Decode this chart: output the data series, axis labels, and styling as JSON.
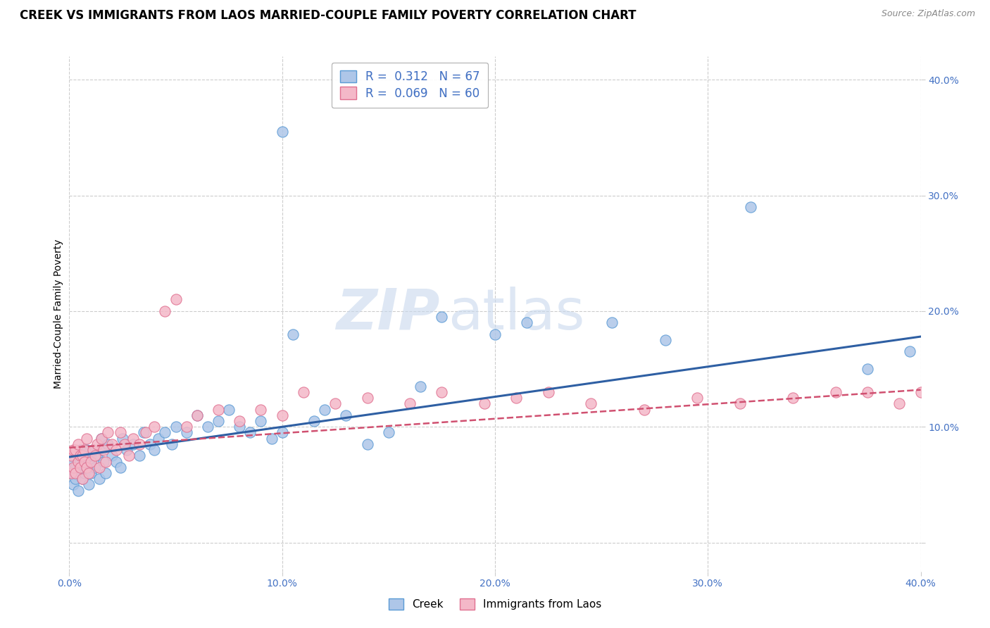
{
  "title": "CREEK VS IMMIGRANTS FROM LAOS MARRIED-COUPLE FAMILY POVERTY CORRELATION CHART",
  "source": "Source: ZipAtlas.com",
  "ylabel": "Married-Couple Family Poverty",
  "xlim": [
    -0.005,
    0.405
  ],
  "ylim": [
    -0.02,
    0.43
  ],
  "plot_xlim": [
    0.0,
    0.4
  ],
  "plot_ylim": [
    0.0,
    0.4
  ],
  "xticks": [
    0.0,
    0.1,
    0.2,
    0.3,
    0.4
  ],
  "xtick_labels": [
    "0.0%",
    "10.0%",
    "20.0%",
    "30.0%",
    "40.0%"
  ],
  "yticks_right": [
    0.0,
    0.1,
    0.2,
    0.3,
    0.4
  ],
  "ytick_labels_right": [
    "",
    "10.0%",
    "20.0%",
    "30.0%",
    "40.0%"
  ],
  "creek_color": "#aec6e8",
  "creek_edge_color": "#5b9bd5",
  "laos_color": "#f4b8c8",
  "laos_edge_color": "#e07090",
  "creek_line_color": "#2e5fa3",
  "laos_line_color": "#d05070",
  "creek_R": 0.312,
  "creek_N": 67,
  "laos_R": 0.069,
  "laos_N": 60,
  "legend_label_creek": "Creek",
  "legend_label_laos": "Immigrants from Laos",
  "watermark_zip": "ZIP",
  "watermark_atlas": "atlas",
  "background_color": "#ffffff",
  "grid_color": "#cccccc",
  "title_fontsize": 12,
  "axis_label_color": "#4472c4",
  "creek_scatter_x": [
    0.001,
    0.002,
    0.002,
    0.003,
    0.003,
    0.004,
    0.004,
    0.005,
    0.005,
    0.006,
    0.006,
    0.007,
    0.007,
    0.008,
    0.008,
    0.009,
    0.009,
    0.01,
    0.01,
    0.011,
    0.012,
    0.013,
    0.014,
    0.015,
    0.015,
    0.016,
    0.017,
    0.018,
    0.02,
    0.022,
    0.024,
    0.025,
    0.027,
    0.03,
    0.033,
    0.035,
    0.038,
    0.04,
    0.042,
    0.045,
    0.048,
    0.05,
    0.055,
    0.06,
    0.065,
    0.07,
    0.075,
    0.08,
    0.085,
    0.09,
    0.095,
    0.1,
    0.105,
    0.115,
    0.12,
    0.13,
    0.14,
    0.15,
    0.165,
    0.175,
    0.2,
    0.215,
    0.255,
    0.28,
    0.32,
    0.375,
    0.395
  ],
  "creek_scatter_y": [
    0.06,
    0.05,
    0.07,
    0.055,
    0.065,
    0.06,
    0.045,
    0.07,
    0.08,
    0.055,
    0.065,
    0.06,
    0.075,
    0.065,
    0.08,
    0.05,
    0.07,
    0.06,
    0.075,
    0.08,
    0.065,
    0.075,
    0.055,
    0.08,
    0.09,
    0.07,
    0.06,
    0.085,
    0.075,
    0.07,
    0.065,
    0.09,
    0.08,
    0.085,
    0.075,
    0.095,
    0.085,
    0.08,
    0.09,
    0.095,
    0.085,
    0.1,
    0.095,
    0.11,
    0.1,
    0.105,
    0.115,
    0.1,
    0.095,
    0.105,
    0.09,
    0.095,
    0.18,
    0.105,
    0.115,
    0.11,
    0.085,
    0.095,
    0.135,
    0.195,
    0.18,
    0.19,
    0.19,
    0.175,
    0.29,
    0.15,
    0.165
  ],
  "creek_outlier_x": [
    0.1
  ],
  "creek_outlier_y": [
    0.355
  ],
  "laos_scatter_x": [
    0.001,
    0.001,
    0.002,
    0.002,
    0.003,
    0.003,
    0.004,
    0.004,
    0.005,
    0.005,
    0.006,
    0.006,
    0.007,
    0.007,
    0.008,
    0.008,
    0.009,
    0.01,
    0.011,
    0.012,
    0.013,
    0.014,
    0.015,
    0.016,
    0.017,
    0.018,
    0.02,
    0.022,
    0.024,
    0.026,
    0.028,
    0.03,
    0.033,
    0.036,
    0.04,
    0.045,
    0.05,
    0.055,
    0.06,
    0.07,
    0.08,
    0.09,
    0.1,
    0.11,
    0.125,
    0.14,
    0.16,
    0.175,
    0.195,
    0.21,
    0.225,
    0.245,
    0.27,
    0.295,
    0.315,
    0.34,
    0.36,
    0.375,
    0.39,
    0.4
  ],
  "laos_scatter_y": [
    0.06,
    0.075,
    0.065,
    0.08,
    0.06,
    0.08,
    0.07,
    0.085,
    0.075,
    0.065,
    0.055,
    0.075,
    0.07,
    0.08,
    0.065,
    0.09,
    0.06,
    0.07,
    0.08,
    0.075,
    0.085,
    0.065,
    0.09,
    0.08,
    0.07,
    0.095,
    0.085,
    0.08,
    0.095,
    0.085,
    0.075,
    0.09,
    0.085,
    0.095,
    0.1,
    0.2,
    0.21,
    0.1,
    0.11,
    0.115,
    0.105,
    0.115,
    0.11,
    0.13,
    0.12,
    0.125,
    0.12,
    0.13,
    0.12,
    0.125,
    0.13,
    0.12,
    0.115,
    0.125,
    0.12,
    0.125,
    0.13,
    0.13,
    0.12,
    0.13
  ],
  "creek_line_x0": 0.0,
  "creek_line_y0": 0.074,
  "creek_line_x1": 0.4,
  "creek_line_y1": 0.178,
  "laos_line_x0": 0.0,
  "laos_line_y0": 0.082,
  "laos_line_x1": 0.4,
  "laos_line_y1": 0.132
}
